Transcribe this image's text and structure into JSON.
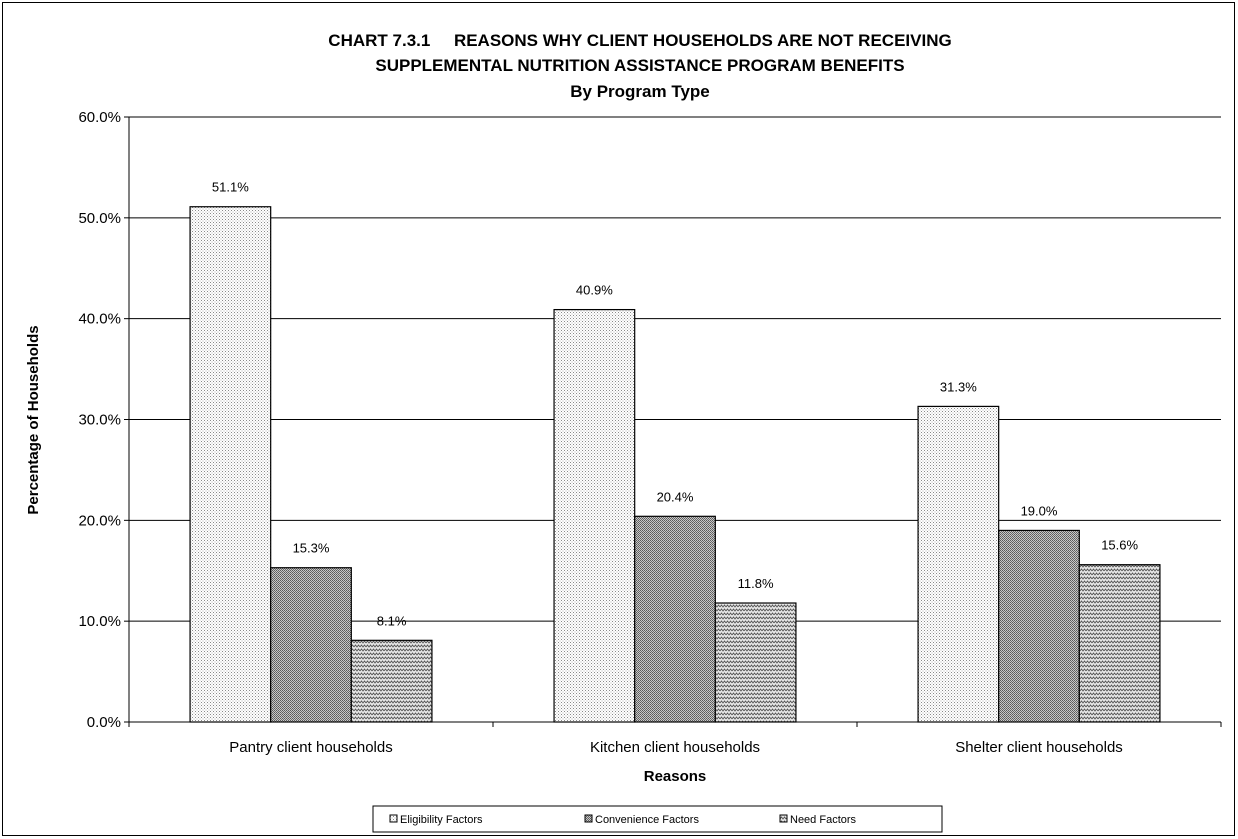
{
  "chart_data": {
    "type": "bar",
    "title": "CHART 7.3.1     REASONS WHY CLIENT HOUSEHOLDS ARE NOT RECEIVING",
    "title_line2": "SUPPLEMENTAL NUTRITION ASSISTANCE PROGRAM BENEFITS",
    "subtitle": "By Program Type",
    "xlabel": "Reasons",
    "ylabel": "Percentage of Households",
    "ylim": [
      0,
      60
    ],
    "yticks": [
      "0.0%",
      "10.0%",
      "20.0%",
      "30.0%",
      "40.0%",
      "50.0%",
      "60.0%"
    ],
    "grid": true,
    "legend_position": "bottom",
    "categories": [
      "Pantry client households",
      "Kitchen client households",
      "Shelter client households"
    ],
    "series": [
      {
        "name": "Eligibility Factors",
        "values": [
          51.1,
          40.9,
          31.3
        ],
        "labels": [
          "51.1%",
          "40.9%",
          "31.3%"
        ],
        "pattern": "dots-light"
      },
      {
        "name": "Convenience Factors",
        "values": [
          15.3,
          20.4,
          19.0
        ],
        "labels": [
          "15.3%",
          "20.4%",
          "19.0%"
        ],
        "pattern": "dots-dark"
      },
      {
        "name": "Need Factors",
        "values": [
          8.1,
          11.8,
          15.6
        ],
        "labels": [
          "8.1%",
          "11.8%",
          "15.6%"
        ],
        "pattern": "zigzag"
      }
    ]
  }
}
